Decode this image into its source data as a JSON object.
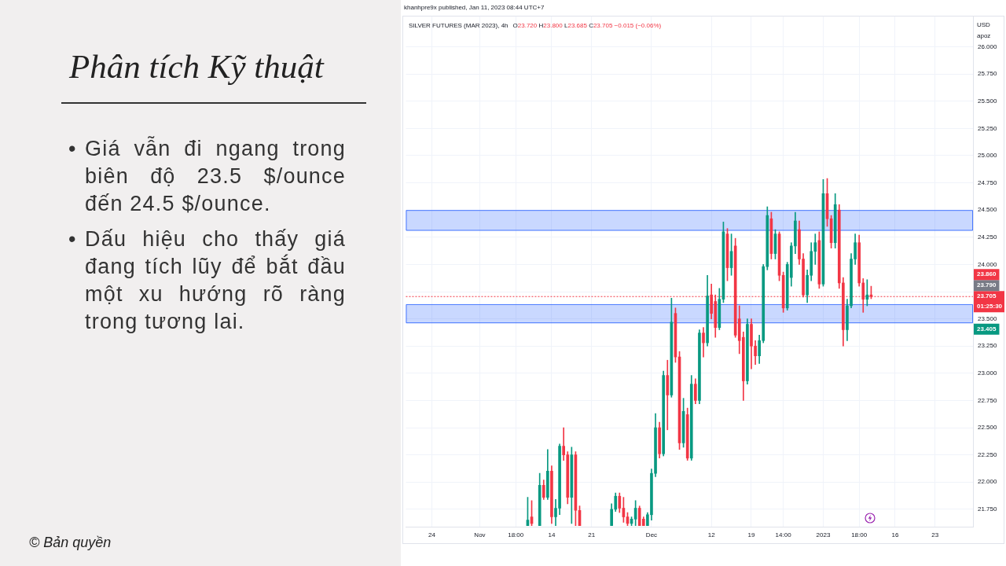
{
  "chart_data": {
    "type": "candlestick",
    "title": "Phân tích Kỹ thuật",
    "subtitle": "SILVER FUTURES (MAR 2023), 4h",
    "ylabel": "USD",
    "categories": [
      null,
      null,
      null,
      null,
      null,
      null,
      "24",
      null,
      null,
      null,
      null,
      null,
      null,
      null,
      null,
      null,
      null,
      null,
      "Nov",
      null,
      null,
      null,
      null,
      null,
      null,
      null,
      null,
      "18:00",
      null,
      null,
      null,
      null,
      null,
      null,
      null,
      null,
      "14",
      null,
      null,
      null,
      null,
      null,
      null,
      null,
      null,
      null,
      "21",
      null,
      null,
      null,
      null,
      null,
      null,
      null,
      null,
      null,
      null,
      null,
      null,
      null,
      null,
      "Dec",
      null,
      null,
      null,
      null,
      null,
      null,
      null,
      null,
      null,
      null,
      null,
      null,
      null,
      null,
      "12",
      null,
      null,
      null,
      null,
      null,
      null,
      null,
      null,
      null,
      "19",
      null,
      null,
      null,
      null,
      null,
      null,
      null,
      "14:00",
      null,
      null,
      null,
      null,
      null,
      null,
      null,
      null,
      null,
      "2023",
      null,
      null,
      null,
      null,
      null,
      null,
      null,
      null,
      "18:00",
      null,
      null,
      null,
      null,
      null,
      null,
      null,
      null,
      "16",
      null,
      null,
      null,
      null,
      null,
      null,
      null,
      null,
      null,
      "23",
      null,
      null,
      null,
      null,
      null,
      null,
      null,
      null,
      null
    ],
    "ohlc": [
      null,
      null,
      null,
      null,
      null,
      null,
      null,
      null,
      null,
      null,
      null,
      null,
      null,
      null,
      null,
      null,
      null,
      null,
      null,
      null,
      null,
      null,
      null,
      null,
      null,
      null,
      null,
      null,
      null,
      null,
      [
        21.6,
        21.86,
        21.6,
        21.65
      ],
      [
        21.68,
        21.83,
        21.6,
        21.62
      ],
      null,
      [
        21.6,
        22.08,
        21.6,
        21.97
      ],
      [
        21.97,
        22.02,
        21.84,
        21.86
      ],
      [
        21.86,
        22.3,
        21.84,
        22.1
      ],
      [
        22.1,
        22.15,
        21.62,
        21.68
      ],
      [
        21.68,
        21.84,
        21.6,
        21.76
      ],
      [
        21.76,
        22.35,
        21.7,
        22.33
      ],
      [
        22.33,
        22.5,
        22.2,
        22.25
      ],
      [
        22.25,
        22.28,
        21.8,
        21.86
      ],
      [
        21.86,
        22.32,
        21.62,
        22.25
      ],
      [
        22.25,
        22.28,
        21.6,
        21.74
      ],
      [
        21.74,
        21.78,
        21.6,
        21.6
      ],
      null,
      null,
      null,
      null,
      null,
      null,
      null,
      [
        21.6,
        21.8,
        21.6,
        21.75
      ],
      [
        21.75,
        21.9,
        21.73,
        21.87
      ],
      [
        21.87,
        21.9,
        21.72,
        21.76
      ],
      [
        21.76,
        21.86,
        21.63,
        21.68
      ],
      [
        21.68,
        21.72,
        21.6,
        21.62
      ],
      [
        21.62,
        21.68,
        21.6,
        21.66
      ],
      [
        21.66,
        21.83,
        21.6,
        21.76
      ],
      [
        21.76,
        21.78,
        21.6,
        21.6
      ],
      [
        21.66,
        21.68,
        21.6,
        21.6
      ],
      [
        21.6,
        21.72,
        21.6,
        21.7
      ],
      [
        21.7,
        22.12,
        21.65,
        22.08
      ],
      [
        22.08,
        22.63,
        22.05,
        22.5
      ],
      [
        22.5,
        22.55,
        22.22,
        22.26
      ],
      [
        22.26,
        23.02,
        22.24,
        22.98
      ],
      [
        22.98,
        23.12,
        22.48,
        22.8
      ],
      [
        22.8,
        23.69,
        22.78,
        23.47
      ],
      [
        23.55,
        23.6,
        23.1,
        23.15
      ],
      [
        23.15,
        23.2,
        22.3,
        22.36
      ],
      [
        22.36,
        22.77,
        22.32,
        22.65
      ],
      [
        22.62,
        22.68,
        22.2,
        22.22
      ],
      [
        22.22,
        22.98,
        22.2,
        22.9
      ],
      [
        22.9,
        22.95,
        22.72,
        22.75
      ],
      [
        22.75,
        23.4,
        22.72,
        23.37
      ],
      [
        23.37,
        23.42,
        23.15,
        23.28
      ],
      [
        23.28,
        23.9,
        23.25,
        23.71
      ],
      [
        23.72,
        23.82,
        23.5,
        23.55
      ],
      [
        23.66,
        23.72,
        23.33,
        23.42
      ],
      [
        23.42,
        23.78,
        23.4,
        23.68
      ],
      [
        23.68,
        24.39,
        23.65,
        24.3
      ],
      [
        24.28,
        24.33,
        23.85,
        23.97
      ],
      [
        23.97,
        24.28,
        23.9,
        24.12
      ],
      [
        24.17,
        24.24,
        23.33,
        23.35
      ],
      [
        23.5,
        23.62,
        23.18,
        23.3
      ],
      [
        23.33,
        23.38,
        22.75,
        22.93
      ],
      [
        22.93,
        23.5,
        22.9,
        23.45
      ],
      [
        23.45,
        23.5,
        23.04,
        23.25
      ],
      [
        23.25,
        23.3,
        23.08,
        23.16
      ],
      [
        23.16,
        23.35,
        23.09,
        23.3
      ],
      [
        23.3,
        24.0,
        23.28,
        23.98
      ],
      [
        23.98,
        24.53,
        23.95,
        24.45
      ],
      [
        24.42,
        24.48,
        24.05,
        24.1
      ],
      [
        24.1,
        24.32,
        24.05,
        24.28
      ],
      [
        24.28,
        24.3,
        23.85,
        23.9
      ],
      [
        23.9,
        23.93,
        23.56,
        23.6
      ],
      [
        23.6,
        24.02,
        23.58,
        24.0
      ],
      [
        23.88,
        24.2,
        23.8,
        24.17
      ],
      [
        24.17,
        24.48,
        24.1,
        24.4
      ],
      [
        24.32,
        24.4,
        24.0,
        24.05
      ],
      [
        24.05,
        24.1,
        23.7,
        23.72
      ],
      [
        23.72,
        23.95,
        23.65,
        23.9
      ],
      [
        23.9,
        24.2,
        23.85,
        24.12
      ],
      [
        24.12,
        24.28,
        24.0,
        24.2
      ],
      [
        24.22,
        24.3,
        23.78,
        23.82
      ],
      [
        23.82,
        24.78,
        23.8,
        24.65
      ],
      [
        24.65,
        24.79,
        24.35,
        24.42
      ],
      [
        24.42,
        24.45,
        24.15,
        24.2
      ],
      [
        24.2,
        24.65,
        24.15,
        24.55
      ],
      [
        24.5,
        24.55,
        23.78,
        23.83
      ],
      [
        23.83,
        23.88,
        23.25,
        23.4
      ],
      [
        23.4,
        23.68,
        23.3,
        23.62
      ],
      [
        23.62,
        24.1,
        23.6,
        24.05
      ],
      [
        24.05,
        24.28,
        24.0,
        24.2
      ],
      [
        24.2,
        24.27,
        23.8,
        23.83
      ],
      [
        23.83,
        23.87,
        23.56,
        23.68
      ],
      [
        23.68,
        23.86,
        23.62,
        23.72
      ],
      [
        23.72,
        23.8,
        23.685,
        23.705
      ],
      null,
      null,
      null,
      null,
      null,
      null,
      null,
      null,
      null,
      null,
      null,
      null,
      null,
      null,
      null,
      null,
      null,
      null,
      null,
      null,
      null,
      null,
      null,
      null,
      null
    ],
    "colors": [
      null,
      null,
      null,
      null,
      null,
      null,
      null,
      null,
      null,
      null,
      null,
      null,
      null,
      null,
      null,
      null,
      null,
      null,
      null,
      null,
      null,
      null,
      null,
      null,
      null,
      null,
      null,
      null,
      null,
      null,
      "#089981",
      "#f23645",
      null,
      "#089981",
      "#f23645",
      "#089981",
      "#f23645",
      "#089981",
      "#089981",
      "#f23645",
      "#f23645",
      "#089981",
      "#f23645",
      "#f23645",
      null,
      null,
      null,
      null,
      null,
      null,
      null,
      "#089981",
      "#089981",
      "#f23645",
      "#f23645",
      "#f23645",
      "#089981",
      "#089981",
      "#f23645",
      "#f23645",
      "#089981",
      "#089981",
      "#089981",
      "#f23645",
      "#089981",
      "#f23645",
      "#089981",
      "#f23645",
      "#f23645",
      "#089981",
      "#f23645",
      "#089981",
      "#f23645",
      "#089981",
      "#f23645",
      "#089981",
      "#f23645",
      "#f23645",
      "#089981",
      "#089981",
      "#f23645",
      "#089981",
      "#f23645",
      "#f23645",
      "#f23645",
      "#089981",
      "#f23645",
      "#f23645",
      "#089981",
      "#089981",
      "#089981",
      "#f23645",
      "#089981",
      "#f23645",
      "#f23645",
      "#089981",
      "#089981",
      "#089981",
      "#f23645",
      "#f23645",
      "#089981",
      "#089981",
      "#089981",
      "#f23645",
      "#089981",
      "#f23645",
      "#f23645",
      "#089981",
      "#f23645",
      "#f23645",
      "#089981",
      "#089981",
      "#089981",
      "#f23645",
      "#f23645",
      "#089981",
      "#f23645",
      null,
      null,
      null,
      null,
      null,
      null,
      null,
      null,
      null,
      null,
      null,
      null,
      null,
      null,
      null,
      null,
      null,
      null,
      null,
      null,
      null,
      null,
      null,
      null,
      null
    ],
    "ylim": [
      21.59,
      26.28
    ],
    "yticks": [
      {
        "value": 21.75,
        "label": "21.750"
      },
      {
        "value": 22.0,
        "label": "22.000"
      },
      {
        "value": 22.25,
        "label": "22.250"
      },
      {
        "value": 22.5,
        "label": "22.500"
      },
      {
        "value": 22.75,
        "label": "22.750"
      },
      {
        "value": 23.0,
        "label": "23.000"
      },
      {
        "value": 23.25,
        "label": "23.250"
      },
      {
        "value": 23.5,
        "label": "23.500"
      },
      {
        "value": 23.75,
        "label": null
      },
      {
        "value": 24.0,
        "label": "24.000"
      },
      {
        "value": 24.25,
        "label": "24.250"
      },
      {
        "value": 24.5,
        "label": "24.500"
      },
      {
        "value": 24.75,
        "label": "24.750"
      },
      {
        "value": 25.0,
        "label": "25.000"
      },
      {
        "value": 25.25,
        "label": "25.250"
      },
      {
        "value": 25.5,
        "label": "25.500"
      },
      {
        "value": 25.75,
        "label": "25.750"
      },
      {
        "value": 26.0,
        "label": "26.000"
      }
    ],
    "grid": true,
    "bands": [
      {
        "axis": "y",
        "from": 24.31,
        "to": 24.5,
        "color": "#2962ff"
      },
      {
        "axis": "y",
        "from": 23.46,
        "to": 23.635,
        "color": "#2962ff"
      }
    ],
    "ref_lines": [
      {
        "axis": "y",
        "value": 23.705,
        "label": "23.705\n01:25:30",
        "color": "#f23645",
        "line_style": "dotted"
      }
    ],
    "annotations": [
      "• Giá vẫn đi ngang trong biên độ 23.5 $/ounce đến 24.5 $/ounce.",
      "• Dấu hiệu cho thấy giá đang tích lũy để bắt đầu một xu hướng rõ ràng trong tương lai.",
      "khanhpre9x published, Jan 11, 2023 08:44 UTC+7",
      "O23.720 H23.800 L23.685 C23.705 −0.015 (−0.06%)",
      "apoz",
      "© Bản quyền",
      "23.860",
      "23.790",
      {
        "text": "23.405",
        "y": 23.405
      }
    ]
  }
}
